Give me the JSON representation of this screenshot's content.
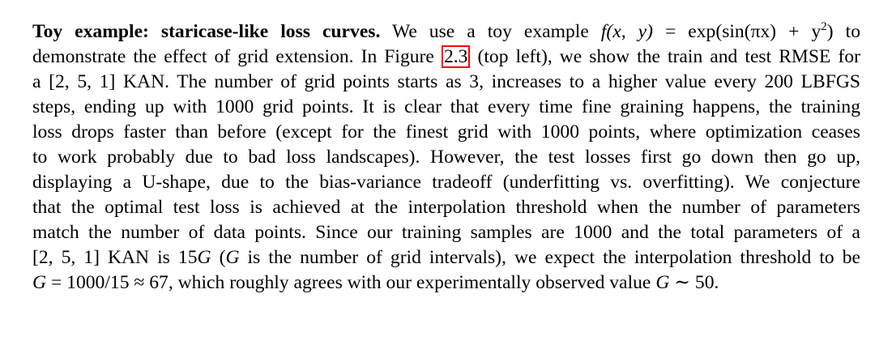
{
  "paragraph": {
    "heading": "Toy example: staricase-like loss curves.",
    "l1a": "We use a toy example",
    "l1_f": "f",
    "l1_args": "(x, y)",
    "l1_eq": "= exp(sin(πx) + y",
    "l1_sup": "2",
    "l1_close": ")",
    "l1_to": "to",
    "l2a": "demonstrate the effect of grid extension. In Figure",
    "l2_ref": "2.3",
    "l2b": "(top left), we show the train and test RMSE for",
    "l3a": "a",
    "l3_math": "[2, 5, 1]",
    "l3b": "KAN. The number of grid points starts as 3, increases to a higher value every 200 LBFGS",
    "l4": "steps, ending up with 1000 grid points. It is clear that every time fine graining happens, the training",
    "l5": "loss drops faster than before (except for the finest grid with 1000 points, where optimization ceases",
    "l6": "to work probably due to bad loss landscapes).  However, the test losses first go down then go up,",
    "l7": "displaying a U-shape, due to the bias-variance tradeoff (underfitting vs. overfitting). We conjecture",
    "l8": "that the optimal test loss is achieved at the interpolation threshold when the number of parameters",
    "l9": "match the number of data points. Since our training samples are 1000 and the total parameters of a",
    "l10_math": "[2, 5, 1]",
    "l10a": "KAN is",
    "l10_num": "15",
    "l10_G": "G",
    "l10b": "(",
    "l10_G2": "G",
    "l10c": "is the number of grid intervals), we expect the interpolation threshold to be",
    "l11_G": "G",
    "l11_eq": "= 1000/15 ≈ 67,",
    "l11a": "which roughly agrees with our experimentally observed value",
    "l11_G2": "G",
    "l11_sim": "∼ 50.",
    "l11_end": ""
  }
}
